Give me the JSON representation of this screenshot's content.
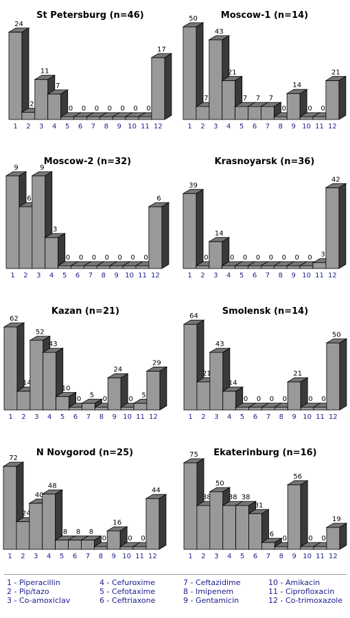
{
  "chart_data": [
    {
      "type": "bar",
      "title": "St Petersburg (n=46)",
      "categories": [
        "1",
        "2",
        "3",
        "4",
        "5",
        "6",
        "7",
        "8",
        "9",
        "10",
        "11",
        "12"
      ],
      "values": [
        24,
        2,
        11,
        7,
        0,
        0,
        0,
        0,
        0,
        0,
        0,
        17
      ]
    },
    {
      "type": "bar",
      "title": "Moscow-1 (n=14)",
      "categories": [
        "1",
        "2",
        "3",
        "4",
        "5",
        "6",
        "7",
        "8",
        "9",
        "10",
        "11",
        "12"
      ],
      "values": [
        50,
        7,
        43,
        21,
        7,
        7,
        7,
        0,
        14,
        0,
        0,
        21
      ]
    },
    {
      "type": "bar",
      "title": "Moscow-2 (n=32)",
      "categories": [
        "1",
        "2",
        "3",
        "4",
        "5",
        "6",
        "7",
        "8",
        "9",
        "10",
        "11",
        "12"
      ],
      "values": [
        9,
        6,
        9,
        3,
        0,
        0,
        0,
        0,
        0,
        0,
        0,
        6
      ]
    },
    {
      "type": "bar",
      "title": "Krasnoyarsk (n=36)",
      "categories": [
        "1",
        "2",
        "3",
        "4",
        "5",
        "6",
        "7",
        "8",
        "9",
        "10",
        "11",
        "12"
      ],
      "values": [
        39,
        0,
        14,
        0,
        0,
        0,
        0,
        0,
        0,
        0,
        3,
        42
      ]
    },
    {
      "type": "bar",
      "title": "Kazan (n=21)",
      "categories": [
        "1",
        "2",
        "3",
        "4",
        "5",
        "6",
        "7",
        "8",
        "9",
        "10",
        "11",
        "12"
      ],
      "values": [
        62,
        14,
        52,
        43,
        10,
        0,
        5,
        0,
        24,
        0,
        5,
        29
      ]
    },
    {
      "type": "bar",
      "title": "Smolensk (n=14)",
      "categories": [
        "1",
        "2",
        "3",
        "4",
        "5",
        "6",
        "7",
        "8",
        "9",
        "10",
        "11",
        "12"
      ],
      "values": [
        64,
        21,
        43,
        14,
        0,
        0,
        0,
        0,
        21,
        0,
        0,
        50
      ]
    },
    {
      "type": "bar",
      "title": "N Novgorod (n=25)",
      "categories": [
        "1",
        "2",
        "3",
        "4",
        "5",
        "6",
        "7",
        "8",
        "9",
        "10",
        "11",
        "12"
      ],
      "values": [
        72,
        24,
        40,
        48,
        8,
        8,
        8,
        0,
        16,
        0,
        0,
        44
      ]
    },
    {
      "type": "bar",
      "title": "Ekaterinburg (n=16)",
      "categories": [
        "1",
        "2",
        "3",
        "4",
        "5",
        "6",
        "7",
        "8",
        "9",
        "10",
        "11",
        "12"
      ],
      "values": [
        75,
        38,
        50,
        38,
        38,
        31,
        6,
        0,
        56,
        0,
        0,
        19
      ]
    }
  ],
  "legend": [
    "1 - Piperacillin",
    "2 - Pip/tazo",
    "3 - Co-amoxiclav",
    "4 - Cefuroxime",
    "5 - Cefotaxime",
    "6 - Ceftriaxone",
    "7 - Ceftazidime",
    "8 - Imipenem",
    "9 - Gentamicin",
    "10 - Amikacin",
    "11 - Ciprofloxacin",
    "12 - Co-trimoxazole"
  ],
  "colors": {
    "bar_front": "#999999",
    "bar_top": "#777777",
    "bar_side": "#3a3a3a",
    "category_label": "#1c1c8c",
    "legend_text": "#1c1c8c"
  }
}
